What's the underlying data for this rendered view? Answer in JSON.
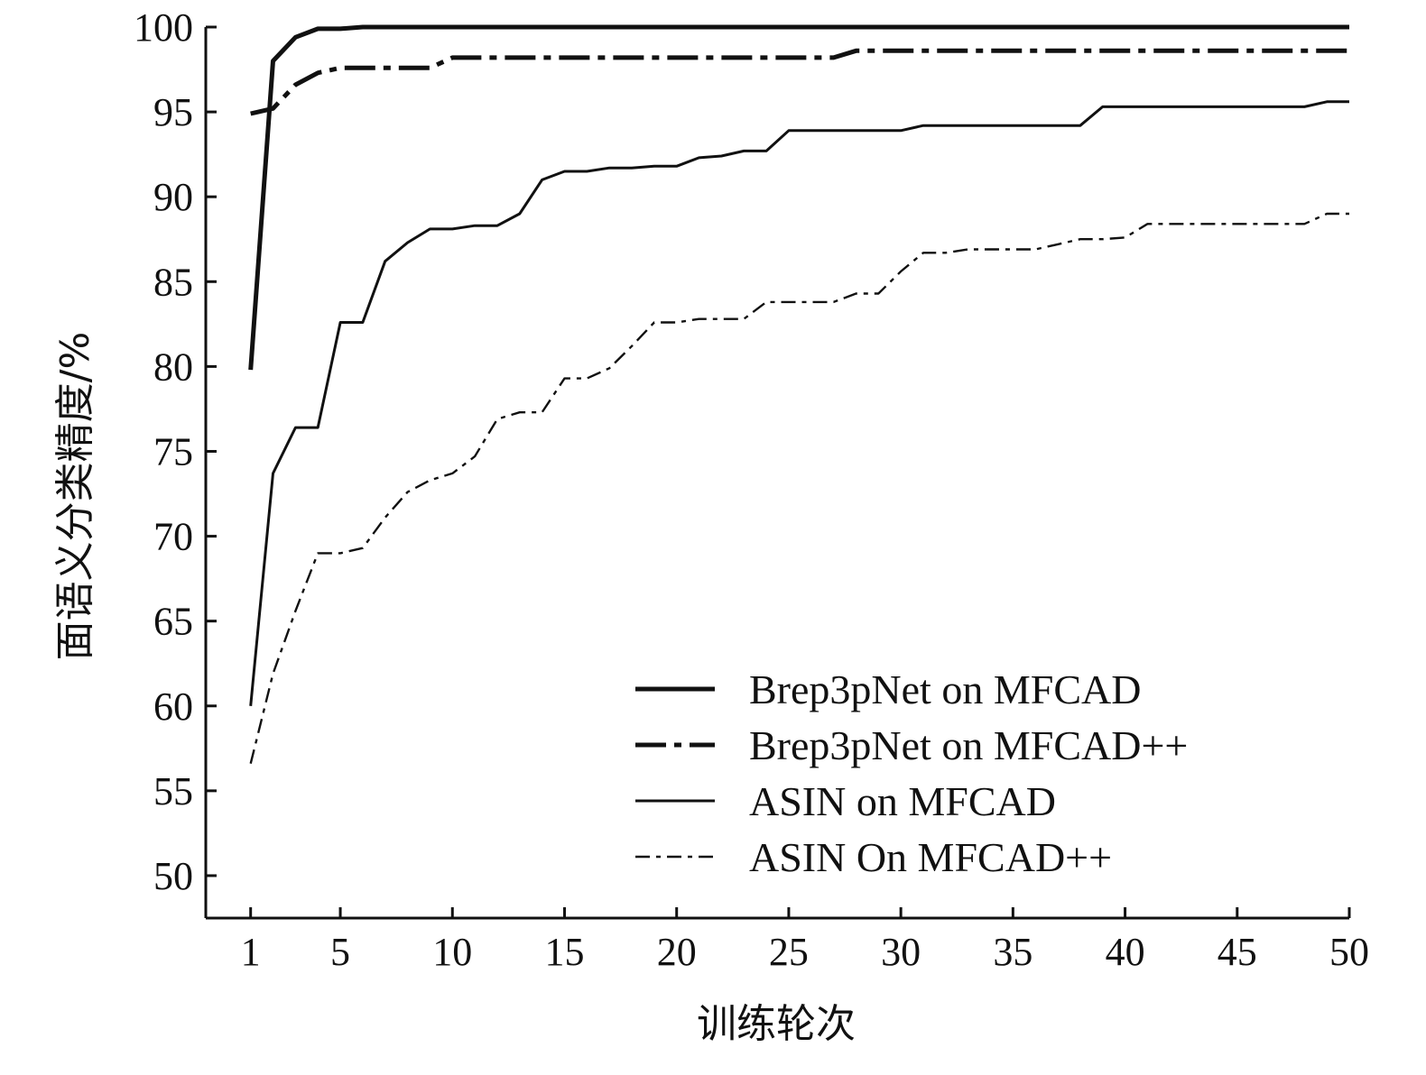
{
  "chart_data": {
    "type": "line",
    "xlabel": "训练轮次",
    "ylabel": "面语义分类精度/%",
    "xlim": [
      -1,
      50
    ],
    "ylim": [
      47.5,
      100
    ],
    "x_ticks": [
      1,
      5,
      10,
      15,
      20,
      25,
      30,
      35,
      40,
      45,
      50
    ],
    "x_tick_labels": [
      "1",
      "5",
      "10",
      "15",
      "20",
      "25",
      "30",
      "35",
      "40",
      "45",
      "50"
    ],
    "y_ticks": [
      50,
      55,
      60,
      65,
      70,
      75,
      80,
      85,
      90,
      95,
      100
    ],
    "y_tick_labels": [
      "50",
      "55",
      "60",
      "65",
      "70",
      "75",
      "80",
      "85",
      "90",
      "95",
      "100"
    ],
    "grid": false,
    "legend_position": "bottom-right",
    "series": [
      {
        "name": "Brep3pNet on MFCAD",
        "style": "thick-solid",
        "x": [
          1,
          2,
          3,
          4,
          5,
          6,
          8,
          10,
          15,
          20,
          30,
          40,
          50
        ],
        "y": [
          79.8,
          98.0,
          99.4,
          99.9,
          99.9,
          100,
          100,
          100,
          100,
          100,
          100,
          100,
          100
        ]
      },
      {
        "name": "Brep3pNet on MFCAD++",
        "style": "thick-dashdot",
        "x": [
          1,
          2,
          3,
          4,
          5,
          6,
          7,
          8,
          9,
          10,
          15,
          20,
          25,
          27,
          28,
          30,
          40,
          50
        ],
        "y": [
          94.9,
          95.2,
          96.6,
          97.3,
          97.6,
          97.6,
          97.6,
          97.6,
          97.6,
          98.2,
          98.2,
          98.2,
          98.2,
          98.2,
          98.6,
          98.6,
          98.6,
          98.6
        ]
      },
      {
        "name": "ASIN on MFCAD",
        "style": "thin-solid",
        "x": [
          1,
          2,
          3,
          4,
          5,
          6,
          7,
          8,
          9,
          10,
          11,
          12,
          13,
          14,
          15,
          16,
          17,
          18,
          19,
          20,
          21,
          22,
          23,
          24,
          25,
          26,
          27,
          28,
          29,
          30,
          31,
          32,
          33,
          34,
          35,
          36,
          37,
          38,
          39,
          40,
          41,
          42,
          43,
          44,
          45,
          46,
          47,
          48,
          49,
          50
        ],
        "y": [
          60.0,
          73.7,
          76.4,
          76.4,
          82.6,
          82.6,
          86.2,
          87.3,
          88.1,
          88.1,
          88.3,
          88.3,
          89.0,
          91.0,
          91.5,
          91.5,
          91.7,
          91.7,
          91.8,
          91.8,
          92.3,
          92.4,
          92.7,
          92.7,
          93.9,
          93.9,
          93.9,
          93.9,
          93.9,
          93.9,
          94.2,
          94.2,
          94.2,
          94.2,
          94.2,
          94.2,
          94.2,
          94.2,
          95.3,
          95.3,
          95.3,
          95.3,
          95.3,
          95.3,
          95.3,
          95.3,
          95.3,
          95.3,
          95.6,
          95.6
        ]
      },
      {
        "name": "ASIN On MFCAD++",
        "style": "thin-dashdot",
        "x": [
          1,
          2,
          3,
          4,
          5,
          6,
          7,
          8,
          9,
          10,
          11,
          12,
          13,
          14,
          15,
          16,
          17,
          18,
          19,
          20,
          21,
          22,
          23,
          24,
          25,
          26,
          27,
          28,
          29,
          30,
          31,
          32,
          33,
          34,
          35,
          36,
          37,
          38,
          39,
          40,
          41,
          42,
          43,
          44,
          45,
          46,
          47,
          48,
          49,
          50
        ],
        "y": [
          56.6,
          61.9,
          65.6,
          69.0,
          69.0,
          69.3,
          71.1,
          72.6,
          73.3,
          73.7,
          74.7,
          76.9,
          77.3,
          77.3,
          79.3,
          79.3,
          79.9,
          81.2,
          82.6,
          82.6,
          82.8,
          82.8,
          82.8,
          83.8,
          83.8,
          83.8,
          83.8,
          84.3,
          84.3,
          85.6,
          86.7,
          86.7,
          86.9,
          86.9,
          86.9,
          86.9,
          87.2,
          87.5,
          87.5,
          87.6,
          88.4,
          88.4,
          88.4,
          88.4,
          88.4,
          88.4,
          88.4,
          88.4,
          89.0,
          89.0
        ]
      }
    ]
  }
}
